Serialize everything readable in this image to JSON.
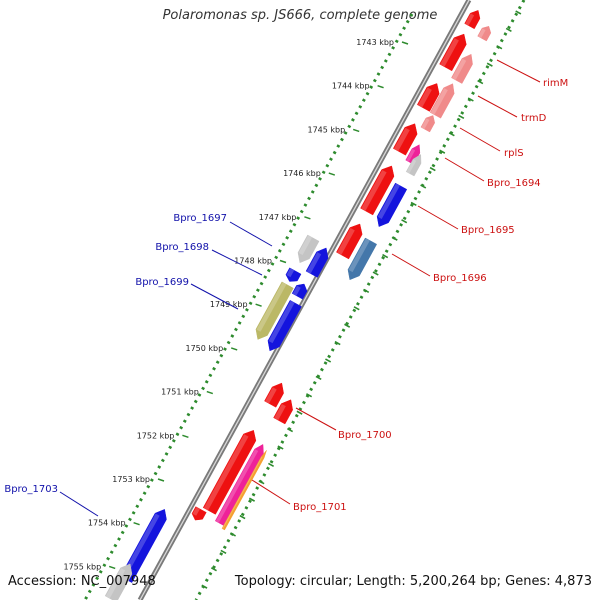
{
  "title": "Polaromonas sp. JS666, complete genome",
  "accession": "Accession: NC_007948",
  "topology": "Topology: circular; Length: 5,200,264 bp; Genes: 4,873",
  "colors": {
    "red": "#ee1111",
    "pink": "#f08a8a",
    "blue": "#1414dd",
    "steel": "#4477aa",
    "olive": "#bbb866",
    "gray": "#c4c4c4",
    "magenta": "#ee2299",
    "orange": "#f5a030",
    "ring": "#7a7a7a",
    "tick_green": "#2e8b2e",
    "label_red": "#cc1111",
    "label_blue": "#1111aa"
  },
  "ticks": [
    "1743 kbp",
    "1744 kbp",
    "1745 kbp",
    "1746 kbp",
    "1747 kbp",
    "1748 kbp",
    "1749 kbp",
    "1750 kbp",
    "1751 kbp",
    "1752 kbp",
    "1753 kbp",
    "1754 kbp",
    "1755 kbp"
  ],
  "labels": {
    "right": [
      "rimM",
      "trmD",
      "rplS",
      "Bpro_1694",
      "Bpro_1695",
      "Bpro_1696",
      "Bpro_1700",
      "Bpro_1701"
    ],
    "left": [
      "Bpro_1697",
      "Bpro_1698",
      "Bpro_1699",
      "Bpro_1703"
    ]
  }
}
